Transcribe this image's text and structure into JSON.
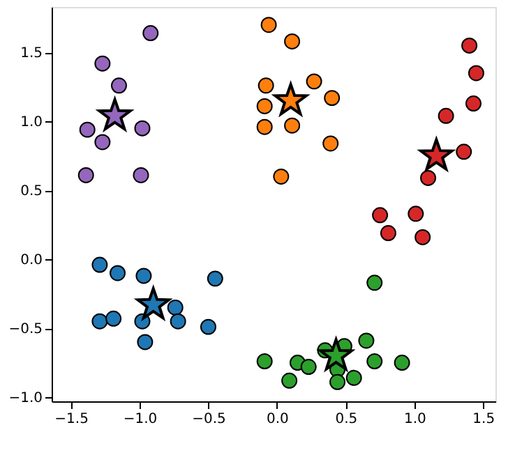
{
  "chart_data": {
    "type": "scatter",
    "xlim": [
      -1.64,
      1.59
    ],
    "ylim": [
      -1.03,
      1.83
    ],
    "xticks": [
      {
        "value": -1.5,
        "label": "−1.5"
      },
      {
        "value": -1.0,
        "label": "−1.0"
      },
      {
        "value": -0.5,
        "label": "−0.5"
      },
      {
        "value": 0.0,
        "label": "0.0"
      },
      {
        "value": 0.5,
        "label": "0.5"
      },
      {
        "value": 1.0,
        "label": "1.0"
      },
      {
        "value": 1.5,
        "label": "1.5"
      }
    ],
    "yticks": [
      {
        "value": -1.0,
        "label": "−1.0"
      },
      {
        "value": -0.5,
        "label": "−0.5"
      },
      {
        "value": 0.0,
        "label": "0.0"
      },
      {
        "value": 0.5,
        "label": "0.5"
      },
      {
        "value": 1.0,
        "label": "1.0"
      },
      {
        "value": 1.5,
        "label": "1.5"
      }
    ],
    "series": [
      {
        "color": "#9467bd",
        "marker": "circle",
        "x": [
          -0.92,
          -1.27,
          -1.15,
          -1.38,
          -1.27,
          -0.98,
          -1.39,
          -0.99
        ],
        "values": [
          1.64,
          1.42,
          1.26,
          0.94,
          0.85,
          0.95,
          0.61,
          0.61
        ]
      },
      {
        "color": "#ff7f0e",
        "marker": "circle",
        "x": [
          -0.06,
          0.11,
          -0.08,
          0.27,
          -0.09,
          0.4,
          -0.09,
          0.11,
          0.39,
          0.03
        ],
        "values": [
          1.7,
          1.58,
          1.26,
          1.29,
          1.11,
          1.17,
          0.96,
          0.97,
          0.84,
          0.6
        ]
      },
      {
        "color": "#d62728",
        "marker": "circle",
        "x": [
          1.4,
          1.45,
          1.43,
          1.23,
          1.36,
          1.1,
          0.75,
          0.81,
          1.01,
          1.06
        ],
        "values": [
          1.55,
          1.35,
          1.13,
          1.04,
          0.78,
          0.59,
          0.32,
          0.19,
          0.33,
          0.16
        ]
      },
      {
        "color": "#2ca02c",
        "marker": "circle",
        "x": [
          0.71,
          -0.09,
          0.09,
          0.15,
          0.23,
          0.35,
          0.49,
          0.44,
          0.44,
          0.56,
          0.65,
          0.71,
          0.91
        ],
        "values": [
          -0.17,
          -0.74,
          -0.88,
          -0.75,
          -0.78,
          -0.66,
          -0.63,
          -0.8,
          -0.89,
          -0.86,
          -0.59,
          -0.74,
          -0.75
        ]
      },
      {
        "color": "#1f77b4",
        "marker": "circle",
        "x": [
          -1.29,
          -1.16,
          -0.97,
          -0.45,
          -1.29,
          -1.19,
          -0.98,
          -0.74,
          -0.72,
          -0.5,
          -0.96
        ],
        "values": [
          -0.04,
          -0.1,
          -0.12,
          -0.14,
          -0.45,
          -0.43,
          -0.45,
          -0.35,
          -0.45,
          -0.49,
          -0.6
        ]
      },
      {
        "color": "#9467bd",
        "marker": "star",
        "x": [
          -1.18
        ],
        "values": [
          1.04
        ]
      },
      {
        "color": "#ff7f0e",
        "marker": "star",
        "x": [
          0.1
        ],
        "values": [
          1.15
        ]
      },
      {
        "color": "#d62728",
        "marker": "star",
        "x": [
          1.16
        ],
        "values": [
          0.75
        ]
      },
      {
        "color": "#2ca02c",
        "marker": "star",
        "x": [
          0.43
        ],
        "values": [
          -0.7
        ]
      },
      {
        "color": "#1f77b4",
        "marker": "star",
        "x": [
          -0.9
        ],
        "values": [
          -0.33
        ]
      }
    ]
  }
}
